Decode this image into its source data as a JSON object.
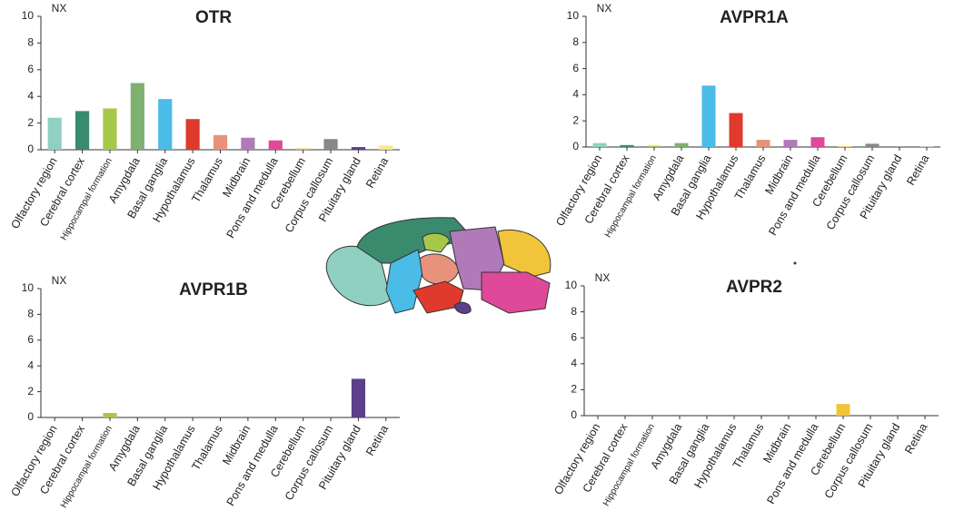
{
  "chart_data": [
    {
      "type": "bar",
      "title": "OTR",
      "y_label": "NX",
      "categories": [
        "Olfactory region",
        "Cerebral cortex",
        "Hippocampal formation",
        "Amygdala",
        "Basal ganglia",
        "Hypothalamus",
        "Thalamus",
        "Midbrain",
        "Pons and medulla",
        "Cerebellum",
        "Corpus callosum",
        "Pituitary gland",
        "Retina"
      ],
      "values": [
        2.4,
        2.9,
        3.1,
        5.0,
        3.8,
        2.3,
        1.1,
        0.9,
        0.7,
        0.1,
        0.8,
        0.2,
        0.3
      ],
      "colors": [
        "#8fd0c0",
        "#3a8a6e",
        "#a6c84a",
        "#7fb070",
        "#4bbbe8",
        "#e03a2c",
        "#e8927c",
        "#b07ab8",
        "#e0489a",
        "#f2c43a",
        "#888888",
        "#5b3f8a",
        "#f5e68a"
      ],
      "ylim": [
        0,
        10
      ],
      "yticks": [
        0,
        2,
        4,
        6,
        8,
        10
      ]
    },
    {
      "type": "bar",
      "title": "AVPR1A",
      "y_label": "NX",
      "categories": [
        "Olfactory region",
        "Cerebral cortex",
        "Hippocampal formation",
        "Amygdala",
        "Basal ganglia",
        "Hypothalamus",
        "Thalamus",
        "Midbrain",
        "Pons and medulla",
        "Cerebellum",
        "Corpus callosum",
        "Pituitary gland",
        "Retina"
      ],
      "values": [
        0.3,
        0.15,
        0.1,
        0.3,
        4.7,
        2.6,
        0.55,
        0.55,
        0.75,
        0.05,
        0.25,
        0.02,
        0.02
      ],
      "colors": [
        "#8fd0c0",
        "#3a8a6e",
        "#a6c84a",
        "#7fb070",
        "#4bbbe8",
        "#e03a2c",
        "#e8927c",
        "#b07ab8",
        "#e0489a",
        "#f2c43a",
        "#888888",
        "#5b3f8a",
        "#f5e68a"
      ],
      "ylim": [
        0,
        10
      ],
      "yticks": [
        0,
        2,
        4,
        6,
        8,
        10
      ]
    },
    {
      "type": "bar",
      "title": "AVPR1B",
      "y_label": "NX",
      "categories": [
        "Olfactory region",
        "Cerebral cortex",
        "Hippocampal formation",
        "Amygdala",
        "Basal ganglia",
        "Hypothalamus",
        "Thalamus",
        "Midbrain",
        "Pons and medulla",
        "Cerebellum",
        "Corpus callosum",
        "Pituitary gland",
        "Retina"
      ],
      "values": [
        0,
        0,
        0.35,
        0,
        0,
        0,
        0,
        0,
        0,
        0,
        0,
        3.0,
        0
      ],
      "colors": [
        "#8fd0c0",
        "#3a8a6e",
        "#a6c84a",
        "#7fb070",
        "#4bbbe8",
        "#e03a2c",
        "#e8927c",
        "#b07ab8",
        "#e0489a",
        "#f2c43a",
        "#888888",
        "#5b3f8a",
        "#f5e68a"
      ],
      "ylim": [
        0,
        10
      ],
      "yticks": [
        0,
        2,
        4,
        6,
        8,
        10
      ]
    },
    {
      "type": "bar",
      "title": "AVPR2",
      "y_label": "NX",
      "categories": [
        "Olfactory region",
        "Cerebral cortex",
        "Hippocampal formation",
        "Amygdala",
        "Basal ganglia",
        "Hypothalamus",
        "Thalamus",
        "Midbrain",
        "Pons and medulla",
        "Cerebellum",
        "Corpus callosum",
        "Pituitary gland",
        "Retina"
      ],
      "values": [
        0,
        0,
        0,
        0,
        0,
        0,
        0,
        0,
        0,
        0.9,
        0,
        0,
        0
      ],
      "colors": [
        "#8fd0c0",
        "#3a8a6e",
        "#a6c84a",
        "#7fb070",
        "#4bbbe8",
        "#e03a2c",
        "#e8927c",
        "#b07ab8",
        "#e0489a",
        "#f2c43a",
        "#888888",
        "#5b3f8a",
        "#f5e68a"
      ],
      "ylim": [
        0,
        10
      ],
      "yticks": [
        0,
        2,
        4,
        6,
        8,
        10
      ]
    }
  ]
}
